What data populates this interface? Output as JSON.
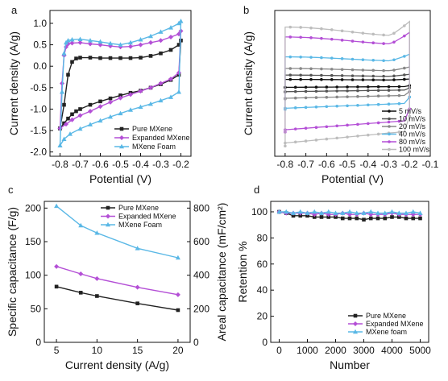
{
  "chart_data": [
    {
      "panel": "a",
      "type": "line",
      "xlabel": "Potential (V)",
      "ylabel": "Current density (A/g)",
      "xlim": [
        -0.85,
        -0.15
      ],
      "ylim": [
        -2.1,
        1.3
      ],
      "xticks": [
        "-0.8",
        "-0.7",
        "-0.6",
        "-0.5",
        "-0.4",
        "-0.3",
        "-0.2"
      ],
      "yticks": [
        "-2.0",
        "-1.5",
        "-1.0",
        "-0.5",
        "0.0",
        "0.5",
        "1.0"
      ],
      "ytick_values": [
        -2.0,
        -1.5,
        -1.0,
        -0.5,
        0.0,
        0.5,
        1.0
      ],
      "xtick_values": [
        -0.8,
        -0.7,
        -0.6,
        -0.5,
        -0.4,
        -0.3,
        -0.2
      ],
      "legend_position": "bottom-right",
      "series": [
        {
          "name": "Pure MXene",
          "color": "#222222",
          "marker": "square",
          "x": [
            -0.8,
            -0.78,
            -0.76,
            -0.74,
            -0.72,
            -0.7,
            -0.65,
            -0.6,
            -0.55,
            -0.5,
            -0.45,
            -0.4,
            -0.35,
            -0.3,
            -0.25,
            -0.21,
            -0.2,
            -0.21,
            -0.25,
            -0.3,
            -0.35,
            -0.4,
            -0.45,
            -0.5,
            -0.55,
            -0.6,
            -0.65,
            -0.7,
            -0.72,
            -0.74,
            -0.76,
            -0.78,
            -0.8
          ],
          "y": [
            -1.45,
            -0.9,
            -0.2,
            0.1,
            0.18,
            0.2,
            0.2,
            0.19,
            0.19,
            0.19,
            0.19,
            0.2,
            0.24,
            0.3,
            0.38,
            0.5,
            0.6,
            -0.2,
            -0.32,
            -0.42,
            -0.5,
            -0.57,
            -0.62,
            -0.68,
            -0.75,
            -0.82,
            -0.9,
            -1.0,
            -1.05,
            -1.12,
            -1.22,
            -1.33,
            -1.45
          ]
        },
        {
          "name": "Expanded MXene",
          "color": "#b44fd6",
          "marker": "diamond",
          "x": [
            -0.8,
            -0.79,
            -0.78,
            -0.77,
            -0.76,
            -0.74,
            -0.7,
            -0.65,
            -0.6,
            -0.55,
            -0.5,
            -0.45,
            -0.4,
            -0.35,
            -0.3,
            -0.25,
            -0.21,
            -0.2,
            -0.21,
            -0.25,
            -0.3,
            -0.35,
            -0.4,
            -0.45,
            -0.5,
            -0.55,
            -0.6,
            -0.65,
            -0.7,
            -0.74,
            -0.77,
            -0.8
          ],
          "y": [
            -1.45,
            -0.4,
            0.25,
            0.45,
            0.52,
            0.54,
            0.55,
            0.52,
            0.5,
            0.47,
            0.45,
            0.46,
            0.5,
            0.55,
            0.6,
            0.68,
            0.75,
            0.82,
            -0.15,
            -0.3,
            -0.4,
            -0.5,
            -0.58,
            -0.66,
            -0.74,
            -0.84,
            -0.94,
            -1.05,
            -1.15,
            -1.25,
            -1.35,
            -1.45
          ]
        },
        {
          "name": "MXene Foam",
          "color": "#5ab8e6",
          "marker": "triangle",
          "x": [
            -0.8,
            -0.79,
            -0.78,
            -0.77,
            -0.76,
            -0.74,
            -0.7,
            -0.65,
            -0.6,
            -0.55,
            -0.5,
            -0.45,
            -0.4,
            -0.35,
            -0.3,
            -0.25,
            -0.21,
            -0.2,
            -0.21,
            -0.25,
            -0.3,
            -0.35,
            -0.4,
            -0.45,
            -0.5,
            -0.55,
            -0.6,
            -0.65,
            -0.7,
            -0.75,
            -0.78,
            -0.8
          ],
          "y": [
            -1.85,
            -0.6,
            0.3,
            0.55,
            0.6,
            0.62,
            0.63,
            0.6,
            0.57,
            0.53,
            0.5,
            0.55,
            0.62,
            0.7,
            0.8,
            0.9,
            1.0,
            1.05,
            -0.6,
            -0.72,
            -0.8,
            -0.88,
            -0.95,
            -1.02,
            -1.1,
            -1.18,
            -1.27,
            -1.36,
            -1.46,
            -1.58,
            -1.7,
            -1.85
          ]
        }
      ]
    },
    {
      "panel": "b",
      "type": "line",
      "xlabel": "Potential (V)",
      "ylabel": "Current density (A/g)",
      "xlim": [
        -0.85,
        -0.1
      ],
      "ylim": [
        -22,
        22
      ],
      "xticks": [
        "-0.8",
        "-0.7",
        "-0.6",
        "-0.5",
        "-0.4",
        "-0.3",
        "-0.2",
        "-0.1"
      ],
      "xtick_values": [
        -0.8,
        -0.7,
        -0.6,
        -0.5,
        -0.4,
        -0.3,
        -0.2,
        -0.1
      ],
      "yticks": [],
      "legend_position": "bottom-right",
      "series": [
        {
          "name": "5 mV/s",
          "color": "#111111",
          "top": 1.2,
          "bot": -1.2
        },
        {
          "name": "10 mV/s",
          "color": "#555555",
          "top": 2.5,
          "bot": -2.5
        },
        {
          "name": "20 mV/s",
          "color": "#888888",
          "top": 4.5,
          "bot": -4.5
        },
        {
          "name": "40 mV/s",
          "color": "#5ab8e6",
          "top": 8,
          "bot": -7.5
        },
        {
          "name": "80 mV/s",
          "color": "#b44fd6",
          "top": 14,
          "bot": -14
        },
        {
          "name": "100 mV/s",
          "color": "#bdbdbd",
          "top": 17,
          "bot": -18
        }
      ]
    },
    {
      "panel": "c",
      "type": "line",
      "xlabel": "Current density (A/g)",
      "ylabel": "Specific capacitance (F/g)",
      "ylabel_right": "Areal capacitance (mF/cm²)",
      "xlim": [
        3.5,
        21.5
      ],
      "ylim": [
        0,
        210
      ],
      "ylim_right": [
        0,
        840
      ],
      "xticks": [
        "5",
        "10",
        "15",
        "20"
      ],
      "xtick_values": [
        5,
        10,
        15,
        20
      ],
      "yticks": [
        "0",
        "50",
        "100",
        "150",
        "200"
      ],
      "ytick_values": [
        0,
        50,
        100,
        150,
        200
      ],
      "yticks_right": [
        "0",
        "200",
        "400",
        "600",
        "800"
      ],
      "ytick_right_values": [
        0,
        200,
        400,
        600,
        800
      ],
      "legend_position": "top-right",
      "series": [
        {
          "name": "Pure MXene",
          "color": "#222222",
          "marker": "square",
          "x": [
            5,
            8,
            10,
            15,
            20
          ],
          "y": [
            83,
            74,
            69,
            58,
            48
          ]
        },
        {
          "name": "Expanded MXene",
          "color": "#b44fd6",
          "marker": "diamond",
          "x": [
            5,
            8,
            10,
            15,
            20
          ],
          "y": [
            113,
            102,
            95,
            82,
            71
          ]
        },
        {
          "name": "MXene Foam",
          "color": "#5ab8e6",
          "marker": "triangle",
          "x": [
            5,
            8,
            10,
            15,
            20
          ],
          "y": [
            203,
            174,
            163,
            140,
            126
          ]
        }
      ]
    },
    {
      "panel": "d",
      "type": "line",
      "xlabel": "Number",
      "ylabel": "Retention %",
      "xlim": [
        -300,
        5300
      ],
      "ylim": [
        0,
        108
      ],
      "xticks": [
        "0",
        "1000",
        "2000",
        "3000",
        "4000",
        "5000"
      ],
      "xtick_values": [
        0,
        1000,
        2000,
        3000,
        4000,
        5000
      ],
      "yticks": [
        "0",
        "20",
        "40",
        "60",
        "80",
        "100"
      ],
      "ytick_values": [
        0,
        20,
        40,
        60,
        80,
        100
      ],
      "legend_position": "bottom-right",
      "series": [
        {
          "name": "Pure MXene",
          "color": "#222222",
          "marker": "square",
          "x": [
            0,
            250,
            500,
            750,
            1000,
            1250,
            1500,
            1750,
            2000,
            2250,
            2500,
            2750,
            3000,
            3250,
            3500,
            3750,
            4000,
            4250,
            4500,
            4750,
            5000
          ],
          "y": [
            100,
            99,
            97,
            97,
            97,
            96,
            96,
            96,
            96,
            95,
            95,
            95,
            94,
            95,
            95,
            95,
            96,
            96,
            95,
            95,
            95
          ]
        },
        {
          "name": "Expanded MXene",
          "color": "#b44fd6",
          "marker": "diamond",
          "x": [
            0,
            250,
            500,
            750,
            1000,
            1250,
            1500,
            1750,
            2000,
            2250,
            2500,
            2750,
            3000,
            3250,
            3500,
            3750,
            4000,
            4250,
            4500,
            4750,
            5000
          ],
          "y": [
            100,
            99,
            99,
            99,
            99,
            98,
            99,
            98,
            98,
            99,
            98,
            98,
            99,
            98,
            98,
            98,
            99,
            98,
            98,
            98,
            98
          ]
        },
        {
          "name": "MXene foam",
          "color": "#5ab8e6",
          "marker": "triangle",
          "x": [
            0,
            250,
            500,
            750,
            1000,
            1250,
            1500,
            1750,
            2000,
            2250,
            2500,
            2750,
            3000,
            3250,
            3500,
            3750,
            4000,
            4250,
            4500,
            4750,
            5000
          ],
          "y": [
            100,
            100,
            99,
            100,
            99,
            100,
            99,
            100,
            99,
            99,
            100,
            99,
            99,
            100,
            99,
            99,
            100,
            99,
            99,
            100,
            99
          ]
        }
      ]
    }
  ]
}
